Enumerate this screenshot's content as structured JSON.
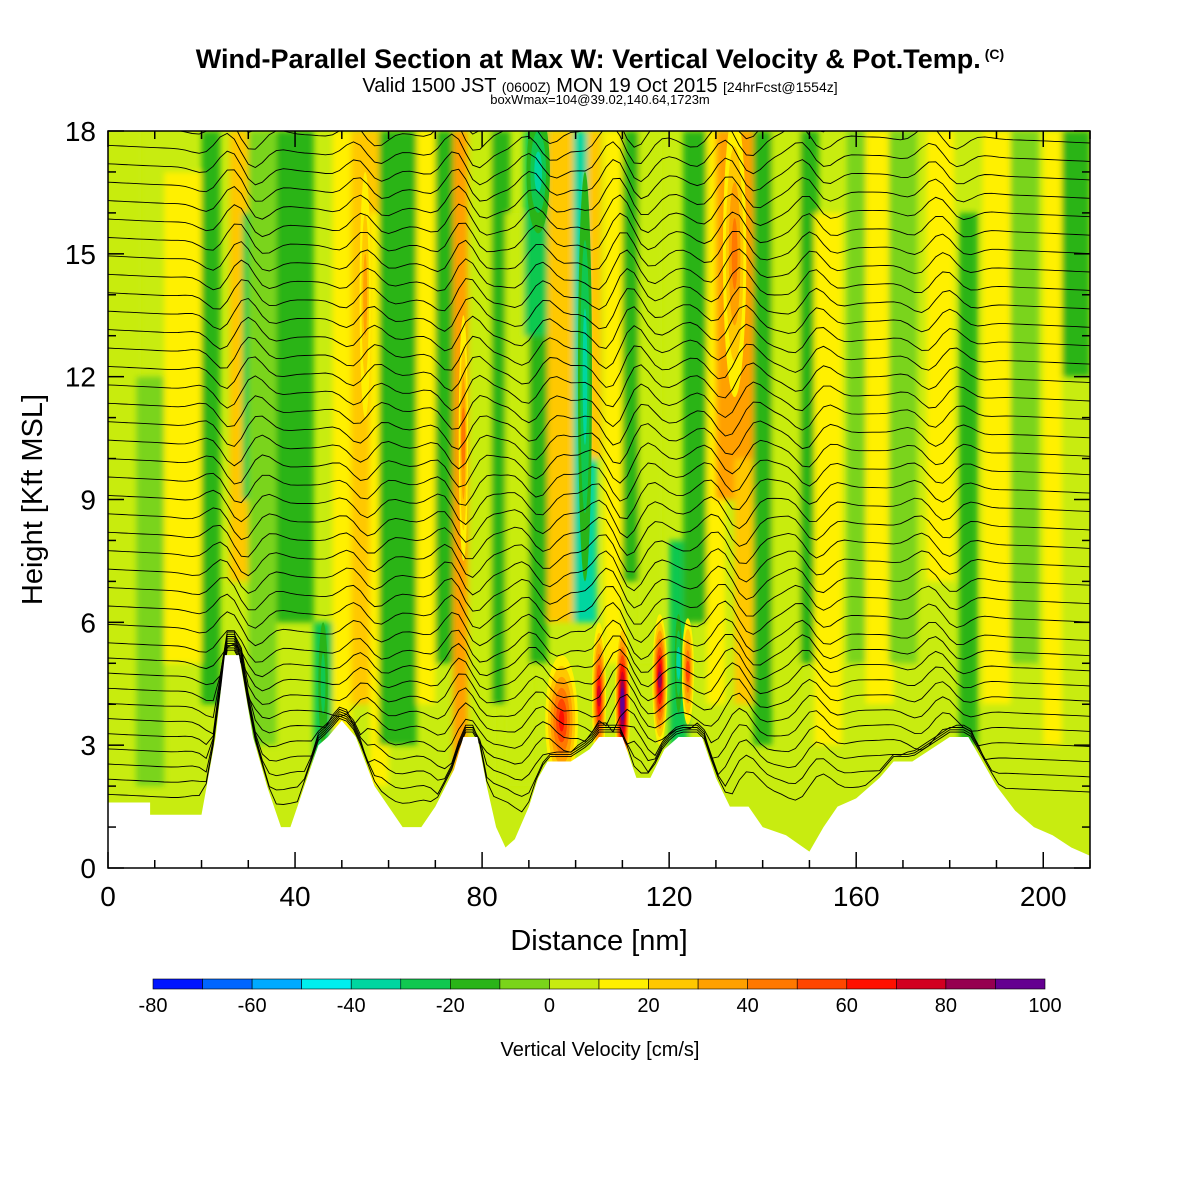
{
  "title": {
    "main": "Wind-Parallel Section at Max W: Vertical Velocity & Pot.Temp.",
    "copyright": "(C)",
    "valid_prefix": "Valid 1500 JST",
    "valid_utc": "(0600Z)",
    "valid_date": "MON 19 Oct 2015",
    "forecast": "[24hrFcst@1554z]",
    "box": "boxWmax=104@39.02,140.64,1723m"
  },
  "chart_data": {
    "type": "heatmap",
    "xlabel": "Distance [nm]",
    "ylabel": "Height [Kft MSL]",
    "xlim": [
      0,
      210
    ],
    "ylim": [
      0,
      18
    ],
    "xticks": [
      "0",
      "40",
      "80",
      "120",
      "160",
      "200"
    ],
    "yticks": [
      "0",
      "3",
      "6",
      "9",
      "12",
      "15",
      "18"
    ],
    "colorbar": {
      "label": "Vertical Velocity [cm/s]",
      "range": [
        -80,
        100
      ],
      "step": 10,
      "tick_labels": [
        "-80",
        "-60",
        "-40",
        "-20",
        "0",
        "20",
        "40",
        "60",
        "80",
        "100"
      ],
      "colors": [
        "#0014ff",
        "#0066ff",
        "#00aaff",
        "#00eeee",
        "#00d6a0",
        "#10c850",
        "#2ab418",
        "#7ad41a",
        "#c8ec10",
        "#fff000",
        "#ffc800",
        "#ffa000",
        "#ff7800",
        "#ff4600",
        "#ff1000",
        "#d20020",
        "#960050",
        "#640090"
      ]
    },
    "terrain_height_kft": [
      [
        0,
        1.6
      ],
      [
        9,
        1.6
      ],
      [
        9,
        1.3
      ],
      [
        20,
        1.3
      ],
      [
        23,
        3.2
      ],
      [
        25,
        5.2
      ],
      [
        28,
        5.2
      ],
      [
        31,
        3.2
      ],
      [
        34,
        2.0
      ],
      [
        37,
        1.0
      ],
      [
        39,
        1.0
      ],
      [
        42,
        2.0
      ],
      [
        45,
        3.0
      ],
      [
        47,
        3.2
      ],
      [
        50,
        3.6
      ],
      [
        53,
        3.2
      ],
      [
        57,
        2.0
      ],
      [
        60,
        1.5
      ],
      [
        63,
        1.0
      ],
      [
        67,
        1.0
      ],
      [
        70,
        1.5
      ],
      [
        74,
        2.4
      ],
      [
        76,
        3.2
      ],
      [
        79,
        3.2
      ],
      [
        81,
        2.0
      ],
      [
        83,
        1.0
      ],
      [
        85,
        0.5
      ],
      [
        87,
        0.7
      ],
      [
        90,
        1.5
      ],
      [
        92,
        2.2
      ],
      [
        94,
        2.6
      ],
      [
        99,
        2.6
      ],
      [
        103,
        2.9
      ],
      [
        105,
        3.2
      ],
      [
        110,
        3.2
      ],
      [
        113,
        2.2
      ],
      [
        116,
        2.2
      ],
      [
        119,
        2.9
      ],
      [
        122,
        3.2
      ],
      [
        127,
        3.2
      ],
      [
        130,
        2.2
      ],
      [
        133,
        1.5
      ],
      [
        137,
        1.5
      ],
      [
        140,
        1.0
      ],
      [
        145,
        0.8
      ],
      [
        150,
        0.4
      ],
      [
        153,
        1.0
      ],
      [
        156,
        1.5
      ],
      [
        160,
        1.7
      ],
      [
        165,
        2.2
      ],
      [
        168,
        2.6
      ],
      [
        172,
        2.6
      ],
      [
        176,
        2.9
      ],
      [
        180,
        3.2
      ],
      [
        184,
        3.2
      ],
      [
        187,
        2.6
      ],
      [
        190,
        2.0
      ],
      [
        194,
        1.4
      ],
      [
        198,
        1.0
      ],
      [
        202,
        0.8
      ],
      [
        206,
        0.5
      ],
      [
        210,
        0.3
      ]
    ],
    "w_updraft_bands": [
      {
        "x": 97,
        "z": 3.6,
        "w_cm_s": 60
      },
      {
        "x": 105,
        "z": 4.2,
        "w_cm_s": 75
      },
      {
        "x": 110,
        "z": 4.0,
        "w_cm_s": 104
      },
      {
        "x": 118,
        "z": 4.6,
        "w_cm_s": 80
      },
      {
        "x": 124,
        "z": 4.8,
        "w_cm_s": 50
      },
      {
        "x": 76,
        "z": 10.5,
        "w_cm_s": 40
      },
      {
        "x": 134,
        "z": 15.0,
        "w_cm_s": 40
      },
      {
        "x": 55,
        "z": 14.0,
        "w_cm_s": 30
      }
    ],
    "w_downdraft_bands": [
      {
        "x": 102,
        "z": 12.0,
        "w_cm_s": -35
      },
      {
        "x": 92,
        "z": 17.0,
        "w_cm_s": -35
      },
      {
        "x": 46,
        "z": 4.5,
        "w_cm_s": -25
      },
      {
        "x": 122,
        "z": 5.0,
        "w_cm_s": -30
      }
    ]
  }
}
